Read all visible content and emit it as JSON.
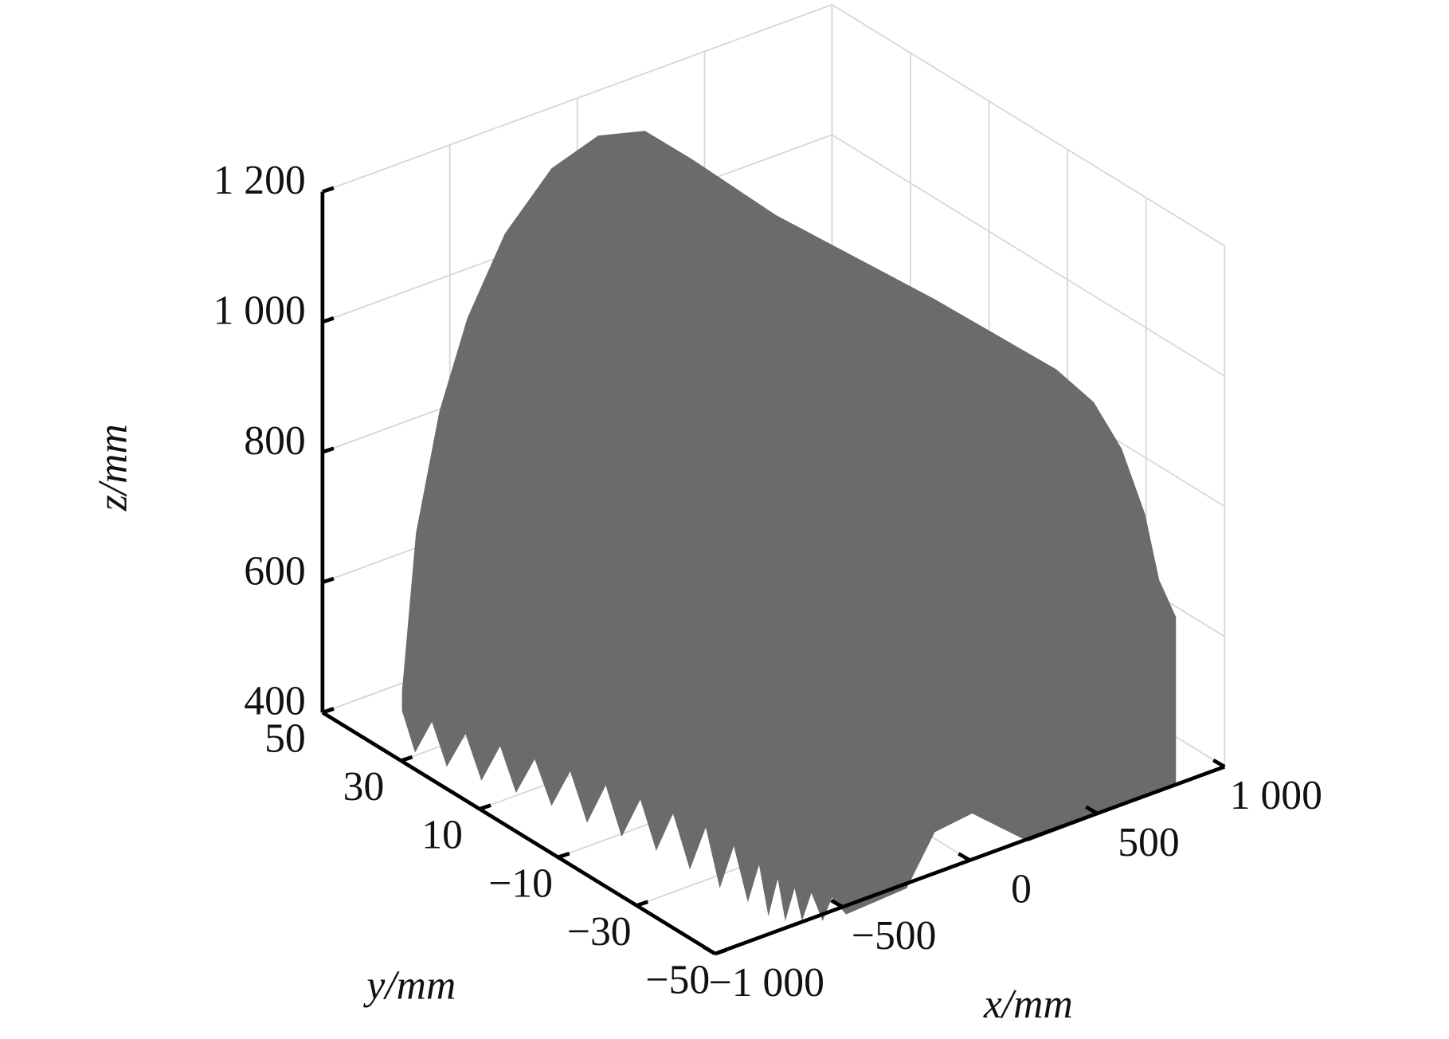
{
  "chart_data": {
    "type": "surface3d",
    "color": "#6b6b6b",
    "grid": true,
    "xlabel": "x/mm",
    "ylabel": "y/mm",
    "zlabel": "z/mm",
    "xlim": [
      -1000,
      1000
    ],
    "xticks": [
      {
        "value": -1000,
        "label": "−1 000"
      },
      {
        "value": -500,
        "label": "−500"
      },
      0,
      500,
      {
        "value": 1000,
        "label": "1 000"
      }
    ],
    "ylim": [
      -50,
      50
    ],
    "yticks": [
      50,
      30,
      10,
      {
        "value": -10,
        "label": "−10"
      },
      {
        "value": -30,
        "label": "−30"
      },
      {
        "value": -50,
        "label": "−50"
      }
    ],
    "zlim": [
      400,
      1200
    ],
    "zticks": [
      400,
      600,
      800,
      {
        "value": 1000,
        "label": "1 000"
      },
      {
        "value": 1200,
        "label": "1 200"
      }
    ]
  }
}
